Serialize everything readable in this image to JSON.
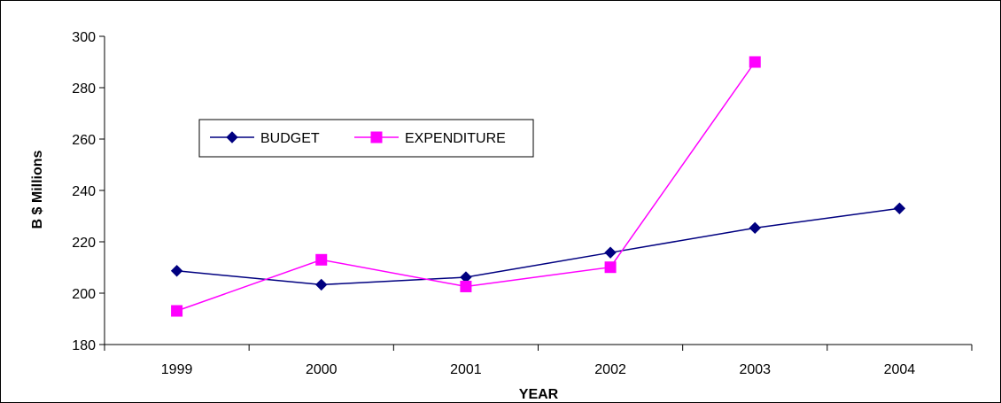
{
  "chart_data": {
    "type": "line",
    "title": "",
    "xlabel": "YEAR",
    "ylabel": "B $ Millions",
    "categories": [
      "1999",
      "2000",
      "2001",
      "2002",
      "2003",
      "2004"
    ],
    "ylim": [
      180,
      300
    ],
    "yticks": [
      180,
      200,
      220,
      240,
      260,
      280,
      300
    ],
    "grid": false,
    "legend_position": "top-left",
    "series": [
      {
        "name": "BUDGET",
        "marker": "diamond",
        "color": "#000080",
        "values": [
          208.7,
          203.3,
          206.2,
          215.8,
          225.4,
          233.0
        ]
      },
      {
        "name": "EXPENDITURE",
        "marker": "square",
        "color": "#ff00ff",
        "values": [
          193.1,
          213.0,
          202.6,
          210.1,
          290.0,
          null
        ]
      }
    ]
  }
}
